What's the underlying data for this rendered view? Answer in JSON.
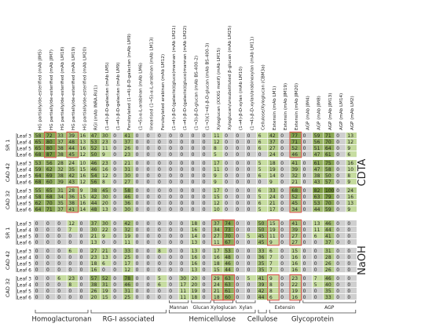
{
  "columns": [
    "HG partially/de-esterified (mAb JIM5)",
    "HG partially/de-esterified (mAb JIM7)",
    "HG partially/de-esterified (mAb LM18)",
    "HG partially/de-esterified (mAb LM19)",
    "HG partially/de-esterified (mAb LM20)",
    "RGI (mAb INRA-RU1)",
    "(1→4)-β-D-galactan (mAb LM5)",
    "(1→4)-β-D-galactan (mAb LM9)",
    "Feruloylated (1→4)-β-D-galactan (mAb LM9)",
    "(1→5)-α-L-arabinan (mAb LM6)",
    "linearised (1→5)-α-L-arabinan (mAb LM13)",
    "Feruloylated arabinan (mAb LM12)",
    "(1→4)-β-D-(galacto)(gluco)mannan (mAb LM21)",
    "(1→4)-β-D-(galacto)(gluco)mannan (mAb LM22)",
    "(1→3)-β-D-glucan (mAb BS-400-2)",
    "(1→3)(1→4)-β-D-glucan (mAb BS-400-3)",
    "Xyloglucan (XXXG motif) (mAb LM15)",
    "Xyloglucan/unsubstituted β-glucan (mAb LM25)",
    "(1→4)-β-D-xylan (mAb LM10)",
    "(1→4)-β-D-xylan/arabinoxylan (mAb LM11)",
    "Cellulose/Xyloglucan (CBM3a)",
    "Extensin (mAb LM1)",
    "Extensin (mAb JIM19)",
    "Extensin (mAb JIM20)",
    "AGP (mAb JIM4)",
    "AGP (mAb JIM8)",
    "AGP (mAb JIM13)",
    "AGP (mAb LM14)",
    "AGP (mAb LM2)"
  ],
  "leaves": [
    "Leaf 3",
    "Leaf 4",
    "Leaf 5",
    "Leaf 6"
  ],
  "sections": [
    {
      "label": "CDTA",
      "groups": [
        {
          "name": "SR 1",
          "rows": [
            [
              58,
              72,
              33,
              39,
              16,
              47,
              30,
              0,
              41,
              0,
              0,
              0,
              0,
              0,
              0,
              0,
              11,
              0,
              0,
              0,
              6,
              42,
              0,
              77,
              0,
              59,
              71,
              0,
              13
            ],
            [
              65,
              80,
              37,
              48,
              13,
              53,
              23,
              0,
              37,
              0,
              0,
              0,
              0,
              0,
              0,
              0,
              12,
              0,
              0,
              0,
              6,
              37,
              0,
              71,
              0,
              56,
              70,
              0,
              12
            ],
            [
              65,
              80,
              38,
              44,
              16,
              52,
              11,
              0,
              26,
              0,
              0,
              0,
              0,
              0,
              0,
              0,
              8,
              0,
              0,
              0,
              6,
              27,
              0,
              52,
              0,
              51,
              64,
              0,
              9
            ],
            [
              68,
              87,
              38,
              45,
              12,
              50,
              9,
              0,
              23,
              0,
              0,
              0,
              0,
              0,
              0,
              0,
              5,
              0,
              0,
              0,
              0,
              24,
              0,
              46,
              0,
              47,
              61,
              0,
              6
            ]
          ]
        },
        {
          "name": "CAD 42",
          "rows": [
            [
              53,
              56,
              28,
              24,
              10,
              46,
              23,
              0,
              21,
              0,
              0,
              0,
              0,
              0,
              0,
              0,
              17,
              0,
              0,
              0,
              5,
              18,
              0,
              41,
              0,
              61,
              75,
              0,
              16
            ],
            [
              59,
              62,
              32,
              35,
              15,
              46,
              16,
              0,
              31,
              0,
              0,
              0,
              0,
              0,
              0,
              0,
              11,
              0,
              0,
              0,
              5,
              19,
              0,
              39,
              0,
              47,
              58,
              0,
              10
            ],
            [
              64,
              69,
              38,
              42,
              16,
              54,
              12,
              0,
              30,
              0,
              0,
              0,
              0,
              0,
              0,
              0,
              9,
              0,
              0,
              0,
              6,
              14,
              0,
              32,
              0,
              38,
              50,
              0,
              8
            ],
            [
              68,
              60,
              39,
              43,
              12,
              56,
              8,
              0,
              27,
              0,
              0,
              0,
              0,
              0,
              0,
              0,
              9,
              0,
              0,
              0,
              0,
              9,
              0,
              21,
              0,
              43,
              57,
              0,
              9
            ]
          ]
        },
        {
          "name": "CAD 32",
          "rows": [
            [
              55,
              65,
              31,
              28,
              9,
              38,
              45,
              0,
              58,
              0,
              0,
              0,
              0,
              0,
              0,
              0,
              17,
              0,
              0,
              0,
              6,
              33,
              0,
              68,
              0,
              82,
              100,
              0,
              24
            ],
            [
              58,
              68,
              34,
              36,
              15,
              42,
              30,
              0,
              46,
              0,
              0,
              0,
              0,
              0,
              0,
              0,
              15,
              0,
              0,
              0,
              5,
              24,
              0,
              52,
              0,
              63,
              79,
              0,
              16
            ],
            [
              62,
              70,
              35,
              38,
              16,
              44,
              20,
              0,
              36,
              0,
              0,
              0,
              0,
              0,
              0,
              0,
              12,
              0,
              0,
              0,
              6,
              21,
              0,
              45,
              0,
              53,
              70,
              0,
              13
            ],
            [
              64,
              71,
              37,
              41,
              14,
              48,
              13,
              0,
              30,
              0,
              0,
              0,
              0,
              0,
              0,
              0,
              10,
              0,
              0,
              0,
              5,
              17,
              0,
              34,
              0,
              44,
              59,
              0,
              9
            ]
          ]
        }
      ]
    },
    {
      "label": "NaOH",
      "groups": [
        {
          "name": "SR 1",
          "rows": [
            [
              0,
              0,
              0,
              12,
              0,
              37,
              30,
              0,
              42,
              0,
              0,
              0,
              0,
              0,
              18,
              0,
              37,
              74,
              0,
              0,
              50,
              15,
              0,
              41,
              0,
              13,
              46,
              0,
              0
            ],
            [
              0,
              0,
              0,
              7,
              0,
              30,
              22,
              0,
              32,
              0,
              0,
              0,
              0,
              0,
              16,
              0,
              34,
              73,
              0,
              0,
              50,
              19,
              0,
              39,
              0,
              11,
              44,
              0,
              0
            ],
            [
              0,
              0,
              0,
              0,
              0,
              21,
              9,
              0,
              19,
              0,
              0,
              0,
              0,
              0,
              14,
              0,
              27,
              70,
              0,
              5,
              45,
              11,
              0,
              27,
              0,
              6,
              41,
              0,
              0
            ],
            [
              0,
              0,
              0,
              0,
              0,
              13,
              0,
              0,
              11,
              0,
              0,
              0,
              0,
              0,
              13,
              0,
              11,
              67,
              0,
              0,
              45,
              9,
              0,
              27,
              0,
              0,
              37,
              0,
              0
            ]
          ]
        },
        {
          "name": "CAD 42",
          "rows": [
            [
              0,
              0,
              0,
              6,
              0,
              27,
              21,
              0,
              33,
              0,
              0,
              8,
              0,
              0,
              13,
              0,
              17,
              53,
              0,
              0,
              33,
              6,
              0,
              15,
              0,
              0,
              31,
              0,
              0
            ],
            [
              0,
              0,
              0,
              0,
              0,
              23,
              13,
              0,
              25,
              0,
              0,
              0,
              0,
              0,
              16,
              0,
              16,
              48,
              0,
              0,
              36,
              7,
              0,
              16,
              0,
              0,
              28,
              0,
              0
            ],
            [
              0,
              0,
              0,
              0,
              0,
              18,
              6,
              0,
              17,
              0,
              0,
              0,
              0,
              0,
              16,
              0,
              18,
              46,
              0,
              0,
              35,
              7,
              0,
              16,
              0,
              0,
              26,
              0,
              0
            ],
            [
              0,
              0,
              0,
              0,
              0,
              16,
              0,
              0,
              12,
              0,
              0,
              0,
              0,
              0,
              13,
              0,
              15,
              44,
              0,
              0,
              35,
              7,
              0,
              16,
              0,
              0,
              26,
              0,
              0
            ]
          ]
        },
        {
          "name": "CAD 32",
          "rows": [
            [
              0,
              0,
              6,
              23,
              0,
              57,
              52,
              0,
              78,
              0,
              0,
              5,
              0,
              30,
              20,
              0,
              29,
              63,
              0,
              5,
              41,
              9,
              0,
              23,
              0,
              7,
              46,
              0,
              0
            ],
            [
              0,
              0,
              0,
              8,
              0,
              38,
              31,
              0,
              46,
              0,
              0,
              6,
              0,
              17,
              20,
              0,
              24,
              63,
              0,
              0,
              39,
              8,
              0,
              22,
              0,
              5,
              40,
              0,
              0
            ],
            [
              0,
              0,
              0,
              0,
              0,
              26,
              19,
              0,
              31,
              0,
              0,
              0,
              0,
              11,
              19,
              0,
              21,
              61,
              0,
              0,
              42,
              8,
              0,
              19,
              0,
              0,
              35,
              0,
              0
            ],
            [
              0,
              0,
              0,
              0,
              0,
              20,
              15,
              0,
              25,
              0,
              0,
              0,
              0,
              11,
              18,
              0,
              18,
              60,
              0,
              0,
              44,
              6,
              0,
              16,
              0,
              0,
              33,
              0,
              0
            ]
          ]
        }
      ]
    }
  ],
  "subgroups": [
    {
      "label": "Mannan",
      "from": 12,
      "to": 13
    },
    {
      "label": "Glucan",
      "from": 14,
      "to": 15
    },
    {
      "label": "Xyloglucan",
      "from": 16,
      "to": 17
    },
    {
      "label": "Xylan",
      "from": 18,
      "to": 19
    },
    {
      "label": "Extensin",
      "from": 21,
      "to": 23
    },
    {
      "label": "AGP",
      "from": 24,
      "to": 28
    }
  ],
  "categories": [
    {
      "label": "Homoglacturonan",
      "from": 0,
      "to": 4
    },
    {
      "label": "RG-I associated",
      "from": 5,
      "to": 11
    },
    {
      "label": "Hemicellulose",
      "from": 12,
      "to": 19
    },
    {
      "label": "Cellulose",
      "from": 20,
      "to": 20
    },
    {
      "label": "Glycoprotein",
      "from": 21,
      "to": 28
    }
  ],
  "highlights": [
    {
      "section": 0,
      "group": 0,
      "col": 1
    },
    {
      "section": 0,
      "group": 0,
      "col": 3
    },
    {
      "section": 0,
      "group": 0,
      "col": 23
    },
    {
      "section": 0,
      "group": 2,
      "col": 3
    },
    {
      "section": 0,
      "group": 2,
      "col": 23
    },
    {
      "section": 1,
      "group": 0,
      "col": 16
    },
    {
      "section": 1,
      "group": 0,
      "col": 17
    },
    {
      "section": 1,
      "group": 0,
      "col": 21
    },
    {
      "section": 1,
      "group": 0,
      "col": 23
    },
    {
      "section": 1,
      "group": 2,
      "col": 16
    },
    {
      "section": 1,
      "group": 2,
      "col": 17
    },
    {
      "section": 1,
      "group": 2,
      "col": 21
    },
    {
      "section": 1,
      "group": 2,
      "col": 23
    }
  ],
  "colors": {
    "zero": "#cfcfcf",
    "low": "#cde2a8",
    "high": "#6d8e2f",
    "highlight_border": "#d9554a",
    "group_line": "#555555"
  }
}
